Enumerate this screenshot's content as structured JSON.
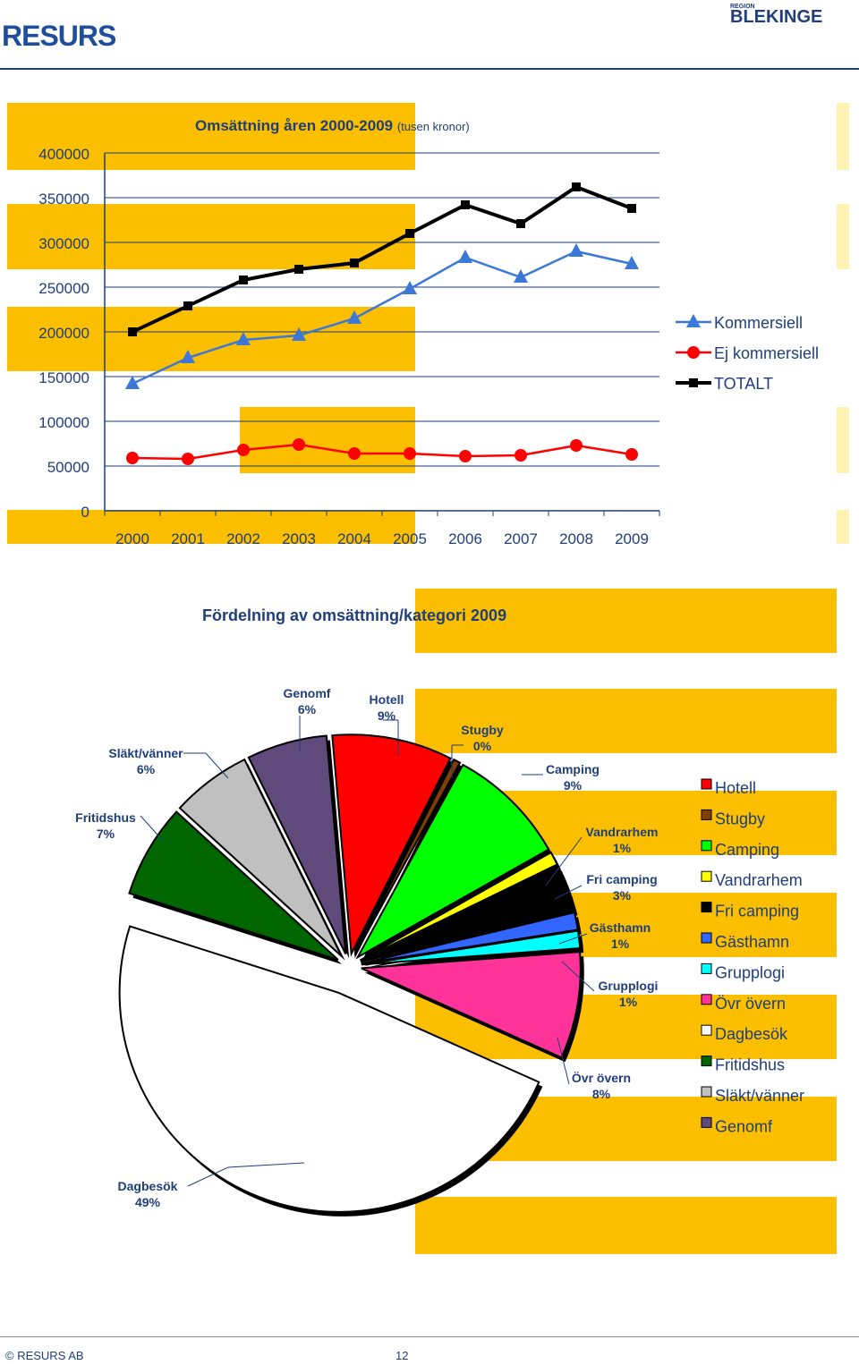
{
  "header": {
    "logo_text": "RESURS",
    "partner_logo_small": "REGION",
    "partner_logo_text": "BLEKINGE"
  },
  "footer": {
    "left": "© RESURS  AB",
    "page": "12"
  },
  "colors": {
    "band": "#fbbf00",
    "navy": "#1f3e7a",
    "line_blue": "#3c78d8",
    "line_red": "#ff0000",
    "line_black": "#000000"
  },
  "chart_data": [
    {
      "type": "line",
      "title": "Omsättning åren 2000-2009",
      "subtitle": "(tusen kronor)",
      "x": [
        "2000",
        "2001",
        "2002",
        "2003",
        "2004",
        "2005",
        "2006",
        "2007",
        "2008",
        "2009"
      ],
      "ylim": [
        0,
        400000
      ],
      "yticks": [
        "0",
        "50000",
        "100000",
        "150000",
        "200000",
        "250000",
        "300000",
        "350000",
        "400000"
      ],
      "legend_position": "right",
      "series": [
        {
          "name": "Kommersiell",
          "color": "#3c78d8",
          "marker": "triangle",
          "values": [
            142000,
            171000,
            191000,
            196000,
            215000,
            248000,
            283000,
            261000,
            290000,
            276000
          ]
        },
        {
          "name": "Ej kommersiell",
          "color": "#ff0000",
          "marker": "circle",
          "values": [
            59000,
            58000,
            68000,
            74000,
            64000,
            64000,
            61000,
            62000,
            73000,
            63000
          ]
        },
        {
          "name": "TOTALT",
          "color": "#000000",
          "marker": "square",
          "values": [
            200000,
            229000,
            258000,
            270000,
            277000,
            310000,
            342000,
            321000,
            362000,
            338000
          ]
        }
      ]
    },
    {
      "type": "pie",
      "title": "Fördelning av omsättning/kategori 2009",
      "legend_position": "right",
      "slices": [
        {
          "name": "Hotell",
          "label": "Hotell",
          "pct_label": "9%",
          "value": 9,
          "color": "#ff0000"
        },
        {
          "name": "Stugby",
          "label": "Stugby",
          "pct_label": "0%",
          "value": 0.5,
          "color": "#7f3f00"
        },
        {
          "name": "Camping",
          "label": "Camping",
          "pct_label": "9%",
          "value": 9,
          "color": "#00ff00"
        },
        {
          "name": "Vandrarhem",
          "label": "Vandrarhem",
          "pct_label": "1%",
          "value": 1,
          "color": "#ffff00"
        },
        {
          "name": "Fri camping",
          "label": "Fri camping",
          "pct_label": "3%",
          "value": 3.5,
          "color": "#000000"
        },
        {
          "name": "Gästhamn",
          "label": "Gästhamn",
          "pct_label": "1%",
          "value": 1.3,
          "color": "#3366ff"
        },
        {
          "name": "Grupplogi",
          "label": "Grupplogi",
          "pct_label": "1%",
          "value": 1.3,
          "color": "#00ffff"
        },
        {
          "name": "Övr övern",
          "label": "Övr övern",
          "pct_label": "8%",
          "value": 8,
          "color": "#ff3399"
        },
        {
          "name": "Dagbesök",
          "label": "Dagbesök",
          "pct_label": "49%",
          "value": 49,
          "color": "#ffffff"
        },
        {
          "name": "Fritidshus",
          "label": "Fritidshus",
          "pct_label": "7%",
          "value": 7,
          "color": "#006600"
        },
        {
          "name": "Släkt/vänner",
          "label": "Släkt/vänner",
          "pct_label": "6%",
          "value": 6,
          "color": "#c0c0c0"
        },
        {
          "name": "Genomf",
          "label": "Genomf",
          "pct_label": "6%",
          "value": 6,
          "color": "#604a7b"
        }
      ]
    }
  ]
}
